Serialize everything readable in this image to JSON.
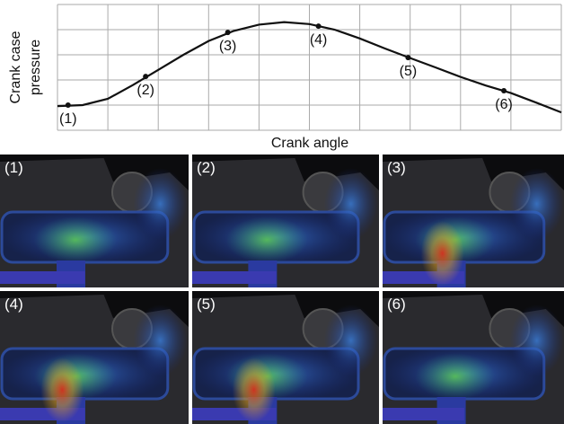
{
  "chart_data": {
    "type": "line",
    "xlabel": "Crank angle",
    "ylabel": [
      "Crank case",
      "pressure"
    ],
    "x": [
      0,
      0.5,
      1,
      1.5,
      2,
      2.5,
      3,
      3.5,
      4,
      4.5,
      5,
      5.5,
      6,
      6.5,
      7,
      7.5,
      8,
      8.5,
      9,
      9.5,
      10
    ],
    "series": [
      {
        "color": "#111111",
        "values": [
          0.96,
          1.0,
          1.25,
          1.8,
          2.4,
          3.0,
          3.55,
          3.95,
          4.2,
          4.3,
          4.22,
          4.0,
          3.65,
          3.25,
          2.87,
          2.5,
          2.12,
          1.78,
          1.48,
          1.1,
          0.71
        ]
      }
    ],
    "annotations": [
      {
        "text": "(1)",
        "x": 0.21,
        "y": 1.0
      },
      {
        "text": "(2)",
        "x": 1.75,
        "y": 2.14
      },
      {
        "text": "(3)",
        "x": 3.38,
        "y": 3.89
      },
      {
        "text": "(4)",
        "x": 5.18,
        "y": 4.14
      },
      {
        "text": "(5)",
        "x": 6.96,
        "y": 2.89
      },
      {
        "text": "(6)",
        "x": 8.86,
        "y": 1.57
      }
    ],
    "xlim": [
      0,
      10
    ],
    "ylim": [
      0,
      5
    ],
    "xticks": [
      0,
      1,
      2,
      3,
      4,
      5,
      6,
      7,
      8,
      9,
      10
    ],
    "yticks": [
      0,
      1,
      2,
      3,
      4,
      5
    ],
    "grid": true
  },
  "panels": [
    "(1)",
    "(2)",
    "(3)",
    "(4)",
    "(5)",
    "(6)"
  ]
}
